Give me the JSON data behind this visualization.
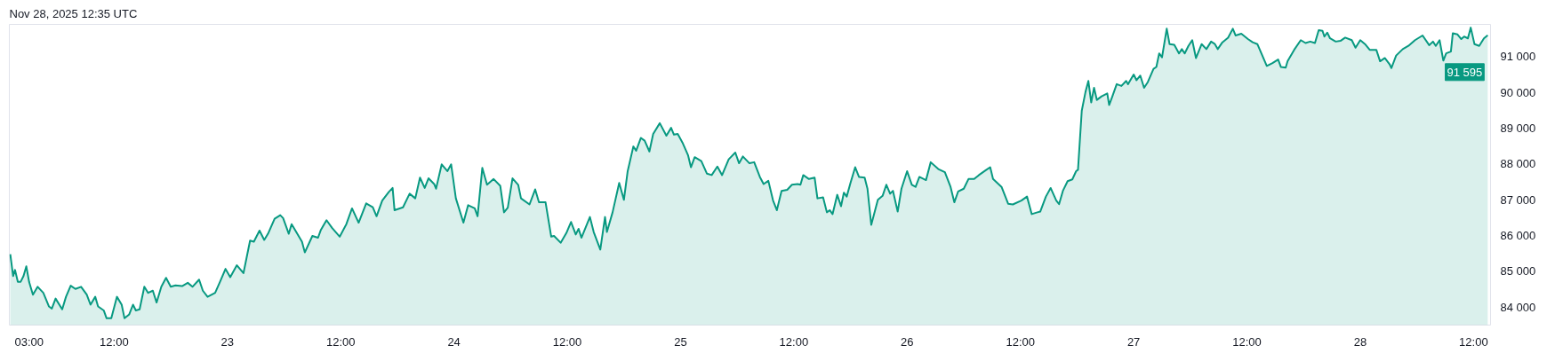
{
  "chart_data": {
    "type": "area",
    "title": "Nov 28, 2025 12:35 UTC",
    "x": [
      "2025-11-22T01:00",
      "2025-11-22T01:18",
      "2025-11-22T01:30",
      "2025-11-22T01:48",
      "2025-11-22T02:06",
      "2025-11-22T02:24",
      "2025-11-22T02:42",
      "2025-11-22T03:00",
      "2025-11-22T03:24",
      "2025-11-22T03:54",
      "2025-11-22T04:30",
      "2025-11-22T05:06",
      "2025-11-22T05:24",
      "2025-11-22T05:48",
      "2025-11-22T06:30",
      "2025-11-22T06:54",
      "2025-11-22T07:24",
      "2025-11-22T07:54",
      "2025-11-22T08:30",
      "2025-11-22T09:06",
      "2025-11-22T09:30",
      "2025-11-22T10:00",
      "2025-11-22T10:18",
      "2025-11-22T10:54",
      "2025-11-22T11:12",
      "2025-11-22T11:42",
      "2025-11-22T12:18",
      "2025-11-22T12:48",
      "2025-11-22T13:06",
      "2025-11-22T13:36",
      "2025-11-22T14:00",
      "2025-11-22T14:18",
      "2025-11-22T14:42",
      "2025-11-22T15:12",
      "2025-11-22T15:36",
      "2025-11-22T16:06",
      "2025-11-22T16:30",
      "2025-11-22T17:00",
      "2025-11-22T17:30",
      "2025-11-22T18:00",
      "2025-11-22T18:30",
      "2025-11-22T19:12",
      "2025-11-22T19:48",
      "2025-11-22T20:18",
      "2025-11-22T21:00",
      "2025-11-22T21:24",
      "2025-11-22T21:54",
      "2025-11-22T22:42",
      "2025-11-22T23:12",
      "2025-11-22T23:48",
      "2025-11-23T00:18",
      "2025-11-23T01:00",
      "2025-11-23T01:42",
      "2025-11-23T02:24",
      "2025-11-23T02:48",
      "2025-11-23T03:24",
      "2025-11-23T03:54",
      "2025-11-23T04:18",
      "2025-11-23T05:00",
      "2025-11-23T05:36",
      "2025-11-23T05:54",
      "2025-11-23T06:30",
      "2025-11-23T06:48",
      "2025-11-23T07:54",
      "2025-11-23T08:12",
      "2025-11-23T09:00",
      "2025-11-23T09:36",
      "2025-11-23T09:54",
      "2025-11-23T10:30",
      "2025-11-23T11:06",
      "2025-11-23T11:54",
      "2025-11-23T12:36",
      "2025-11-23T13:12",
      "2025-11-23T13:54",
      "2025-11-23T14:42",
      "2025-11-23T15:24",
      "2025-11-23T15:48",
      "2025-11-23T16:24",
      "2025-11-23T17:06",
      "2025-11-23T17:30",
      "2025-11-23T17:42",
      "2025-11-23T18:36",
      "2025-11-23T19:18",
      "2025-11-23T19:54",
      "2025-11-23T20:24",
      "2025-11-23T20:54",
      "2025-11-23T21:18",
      "2025-11-23T21:54",
      "2025-11-23T22:06",
      "2025-11-23T22:42",
      "2025-11-23T23:18",
      "2025-11-23T23:42",
      "2025-11-24T00:12",
      "2025-11-24T01:00",
      "2025-11-24T01:30",
      "2025-11-24T02:12",
      "2025-11-24T02:30",
      "2025-11-24T03:00",
      "2025-11-24T03:30",
      "2025-11-24T04:12",
      "2025-11-24T04:54",
      "2025-11-24T05:18",
      "2025-11-24T05:42",
      "2025-11-24T06:12",
      "2025-11-24T06:48",
      "2025-11-24T07:06",
      "2025-11-24T08:00",
      "2025-11-24T08:36",
      "2025-11-24T09:00",
      "2025-11-24T09:42",
      "2025-11-24T10:18",
      "2025-11-24T10:36",
      "2025-11-24T11:18",
      "2025-11-24T11:54",
      "2025-11-24T12:24",
      "2025-11-24T12:54",
      "2025-11-24T13:12",
      "2025-11-24T13:30",
      "2025-11-24T14:24",
      "2025-11-24T14:48",
      "2025-11-24T15:30",
      "2025-11-24T16:00",
      "2025-11-24T16:12",
      "2025-11-24T16:48",
      "2025-11-24T17:30",
      "2025-11-24T18:00",
      "2025-11-24T18:24",
      "2025-11-24T19:00",
      "2025-11-24T19:18",
      "2025-11-24T19:48",
      "2025-11-24T20:12",
      "2025-11-24T20:42",
      "2025-11-24T21:06",
      "2025-11-24T21:48",
      "2025-11-24T22:30",
      "2025-11-24T23:00",
      "2025-11-24T23:18",
      "2025-11-24T23:42",
      "2025-11-25T00:12",
      "2025-11-25T00:48",
      "2025-11-25T01:06",
      "2025-11-25T01:30",
      "2025-11-25T02:12",
      "2025-11-25T02:48",
      "2025-11-25T03:18",
      "2025-11-25T03:54",
      "2025-11-25T04:24",
      "2025-11-25T05:06",
      "2025-11-25T05:48",
      "2025-11-25T06:12",
      "2025-11-25T06:36",
      "2025-11-25T07:18",
      "2025-11-25T07:48",
      "2025-11-25T08:24",
      "2025-11-25T08:48",
      "2025-11-25T09:18",
      "2025-11-25T09:48",
      "2025-11-25T10:12",
      "2025-11-25T10:42",
      "2025-11-25T11:18",
      "2025-11-25T11:48",
      "2025-11-25T12:24",
      "2025-11-25T12:42",
      "2025-11-25T13:00",
      "2025-11-25T13:36",
      "2025-11-25T14:12",
      "2025-11-25T14:30",
      "2025-11-25T15:06",
      "2025-11-25T15:30",
      "2025-11-25T15:48",
      "2025-11-25T16:06",
      "2025-11-25T16:36",
      "2025-11-25T17:00",
      "2025-11-25T17:18",
      "2025-11-25T17:36",
      "2025-11-25T18:00",
      "2025-11-25T18:30",
      "2025-11-25T18:54",
      "2025-11-25T19:30",
      "2025-11-25T19:48",
      "2025-11-25T20:12",
      "2025-11-25T20:54",
      "2025-11-25T21:24",
      "2025-11-25T21:48",
      "2025-11-25T22:12",
      "2025-11-25T22:30",
      "2025-11-25T23:00",
      "2025-11-25T23:24",
      "2025-11-26T00:00",
      "2025-11-26T00:30",
      "2025-11-26T00:54",
      "2025-11-26T01:18",
      "2025-11-26T02:00",
      "2025-11-26T02:30",
      "2025-11-26T03:18",
      "2025-11-26T04:00",
      "2025-11-26T04:36",
      "2025-11-26T05:00",
      "2025-11-26T05:24",
      "2025-11-26T06:00",
      "2025-11-26T06:30",
      "2025-11-26T07:06",
      "2025-11-26T07:36",
      "2025-11-26T08:18",
      "2025-11-26T08:48",
      "2025-11-26T09:06",
      "2025-11-26T10:00",
      "2025-11-26T10:42",
      "2025-11-26T11:12",
      "2025-11-26T12:06",
      "2025-11-26T12:42",
      "2025-11-26T13:12",
      "2025-11-26T13:48",
      "2025-11-26T14:06",
      "2025-11-26T14:42",
      "2025-11-26T15:12",
      "2025-11-26T15:48",
      "2025-11-26T16:06",
      "2025-11-26T16:30",
      "2025-11-26T17:00",
      "2025-11-26T17:30",
      "2025-11-26T17:54",
      "2025-11-26T18:06",
      "2025-11-26T18:30",
      "2025-11-26T18:54",
      "2025-11-26T19:12",
      "2025-11-26T19:30",
      "2025-11-26T19:48",
      "2025-11-26T20:06",
      "2025-11-26T20:36",
      "2025-11-26T21:12",
      "2025-11-26T21:24",
      "2025-11-26T21:42",
      "2025-11-26T22:12",
      "2025-11-26T22:42",
      "2025-11-26T23:12",
      "2025-11-26T23:24",
      "2025-11-27T00:00",
      "2025-11-27T00:18",
      "2025-11-27T00:42",
      "2025-11-27T01:06",
      "2025-11-27T01:30",
      "2025-11-27T02:06",
      "2025-11-27T02:24",
      "2025-11-27T02:42",
      "2025-11-27T03:00",
      "2025-11-27T03:30",
      "2025-11-27T03:48",
      "2025-11-27T04:18",
      "2025-11-27T04:48",
      "2025-11-27T05:06",
      "2025-11-27T05:24",
      "2025-11-27T05:48",
      "2025-11-27T06:12",
      "2025-11-27T06:36",
      "2025-11-27T07:12",
      "2025-11-27T07:42",
      "2025-11-27T08:12",
      "2025-11-27T08:36",
      "2025-11-27T08:54",
      "2025-11-27T09:24",
      "2025-11-27T10:00",
      "2025-11-27T10:30",
      "2025-11-27T10:48",
      "2025-11-27T11:24",
      "2025-11-27T12:06",
      "2025-11-27T12:36",
      "2025-11-27T13:06",
      "2025-11-27T14:06",
      "2025-11-27T14:42",
      "2025-11-27T15:18",
      "2025-11-27T15:36",
      "2025-11-27T16:06",
      "2025-11-27T16:18",
      "2025-11-27T17:00",
      "2025-11-27T17:42",
      "2025-11-27T18:12",
      "2025-11-27T18:42",
      "2025-11-27T19:12",
      "2025-11-27T19:36",
      "2025-11-27T20:00",
      "2025-11-27T20:12",
      "2025-11-27T20:30",
      "2025-11-27T20:48",
      "2025-11-27T21:24",
      "2025-11-27T21:54",
      "2025-11-27T22:24",
      "2025-11-27T23:06",
      "2025-11-27T23:30",
      "2025-11-28T00:00",
      "2025-11-28T00:30",
      "2025-11-28T01:00",
      "2025-11-28T01:42",
      "2025-11-28T02:06",
      "2025-11-28T02:36",
      "2025-11-28T03:06",
      "2025-11-28T03:18",
      "2025-11-28T03:48",
      "2025-11-28T04:30",
      "2025-11-28T05:06",
      "2025-11-28T05:48",
      "2025-11-28T06:36",
      "2025-11-28T07:18",
      "2025-11-28T07:42",
      "2025-11-28T08:00",
      "2025-11-28T08:24",
      "2025-11-28T08:48",
      "2025-11-28T09:06",
      "2025-11-28T09:36",
      "2025-11-28T09:48",
      "2025-11-28T10:18",
      "2025-11-28T10:42",
      "2025-11-28T11:00",
      "2025-11-28T11:24",
      "2025-11-28T11:42",
      "2025-11-28T12:06",
      "2025-11-28T12:36",
      "2025-11-28T13:06",
      "2025-11-28T13:30"
    ],
    "series": [
      {
        "color": "#089981",
        "values": [
          85480,
          84870,
          85040,
          84710,
          84710,
          84870,
          85140,
          84700,
          84350,
          84570,
          84400,
          84020,
          83960,
          84240,
          83940,
          84290,
          84600,
          84510,
          84570,
          84350,
          84070,
          84290,
          84020,
          83910,
          83690,
          83690,
          84290,
          84070,
          83690,
          83800,
          84070,
          83910,
          83940,
          84570,
          84400,
          84460,
          84130,
          84570,
          84820,
          84570,
          84610,
          84590,
          84680,
          84570,
          84770,
          84460,
          84290,
          84400,
          84700,
          85070,
          84840,
          85170,
          84950,
          85860,
          85830,
          86140,
          85880,
          86050,
          86470,
          86570,
          86490,
          86050,
          86320,
          85830,
          85530,
          85990,
          85940,
          86160,
          86430,
          86210,
          85970,
          86320,
          86760,
          86360,
          86900,
          86790,
          86540,
          86980,
          87220,
          87330,
          86710,
          86790,
          87170,
          87040,
          87620,
          87330,
          87600,
          87440,
          87310,
          87990,
          87800,
          87990,
          87040,
          86360,
          86850,
          86760,
          86540,
          87890,
          87420,
          87580,
          87390,
          86650,
          86780,
          87600,
          87420,
          87040,
          86870,
          87290,
          86930,
          86930,
          85970,
          85990,
          85800,
          86070,
          86380,
          86030,
          86190,
          85940,
          86520,
          86100,
          85610,
          86520,
          86100,
          86650,
          87470,
          87000,
          87800,
          88490,
          88370,
          88730,
          88650,
          88350,
          88840,
          89140,
          88790,
          89010,
          88820,
          88840,
          88600,
          88240,
          87910,
          88190,
          88080,
          87730,
          87690,
          87930,
          87690,
          88130,
          88320,
          88020,
          88210,
          88020,
          88050,
          87640,
          87440,
          87530,
          86980,
          86710,
          87250,
          87280,
          87420,
          87440,
          87420,
          87690,
          87580,
          87620,
          87040,
          87070,
          86650,
          86710,
          86600,
          87140,
          86820,
          87200,
          87090,
          87470,
          87910,
          87640,
          87620,
          87310,
          86300,
          87000,
          87110,
          87420,
          87170,
          87250,
          86670,
          87310,
          87800,
          87420,
          87360,
          87640,
          87550,
          88050,
          87860,
          87770,
          87360,
          86930,
          87230,
          87310,
          87580,
          87580,
          87690,
          87820,
          87910,
          87580,
          87360,
          86890,
          86870,
          86980,
          87090,
          86600,
          86650,
          86670,
          87090,
          87330,
          86980,
          86880,
          87250,
          87520,
          87570,
          87800,
          87840,
          89490,
          90020,
          90320,
          89720,
          90130,
          89790,
          89890,
          89970,
          89650,
          89860,
          90230,
          90180,
          90320,
          90230,
          90500,
          90340,
          90470,
          90130,
          90290,
          90660,
          90710,
          91090,
          90980,
          91780,
          91350,
          91330,
          91090,
          91210,
          91090,
          91300,
          91460,
          90960,
          91350,
          91210,
          91420,
          91350,
          91210,
          91400,
          91530,
          91780,
          91590,
          91640,
          91490,
          91400,
          91350,
          90740,
          90820,
          90920,
          90710,
          90690,
          90870,
          91190,
          91460,
          91380,
          91420,
          91380,
          91740,
          91720,
          91560,
          91670,
          91510,
          91420,
          91440,
          91530,
          91460,
          91250,
          91460,
          91350,
          91190,
          91190,
          90870,
          90960,
          90790,
          90680,
          91030,
          91210,
          91300,
          91460,
          91590,
          91320,
          91420,
          91300,
          91460,
          90890,
          91090,
          91140,
          91650,
          91620,
          91490,
          91560,
          91510,
          91810,
          91350,
          91300,
          91510,
          91595
        ]
      }
    ],
    "xlim": [
      "2025-11-22T00:54",
      "2025-11-28T13:48"
    ],
    "ylim": [
      83500,
      91900
    ],
    "xticks": [
      {
        "value": "2025-11-22T03:00",
        "label": "03:00"
      },
      {
        "value": "2025-11-22T12:00",
        "label": "12:00"
      },
      {
        "value": "2025-11-23",
        "label": "23"
      },
      {
        "value": "2025-11-23T12:00",
        "label": "12:00"
      },
      {
        "value": "2025-11-24",
        "label": "24"
      },
      {
        "value": "2025-11-24T12:00",
        "label": "12:00"
      },
      {
        "value": "2025-11-25",
        "label": "25"
      },
      {
        "value": "2025-11-25T12:00",
        "label": "12:00"
      },
      {
        "value": "2025-11-26",
        "label": "26"
      },
      {
        "value": "2025-11-26T12:00",
        "label": "12:00"
      },
      {
        "value": "2025-11-27",
        "label": "27"
      },
      {
        "value": "2025-11-27T12:00",
        "label": "12:00"
      },
      {
        "value": "2025-11-28",
        "label": "28"
      },
      {
        "value": "2025-11-28T12:00",
        "label": "12:00"
      }
    ],
    "yticks": [
      {
        "value": 84000,
        "label": "84 000"
      },
      {
        "value": 85000,
        "label": "85 000"
      },
      {
        "value": 86000,
        "label": "86 000"
      },
      {
        "value": 87000,
        "label": "87 000"
      },
      {
        "value": 88000,
        "label": "88 000"
      },
      {
        "value": 89000,
        "label": "89 000"
      },
      {
        "value": 90000,
        "label": "90 000"
      },
      {
        "value": 91000,
        "label": "91 000"
      }
    ],
    "annotations": [
      {
        "text": "91 595",
        "x": "2025-11-28T13:30",
        "y": 91595
      }
    ],
    "grid": false
  }
}
